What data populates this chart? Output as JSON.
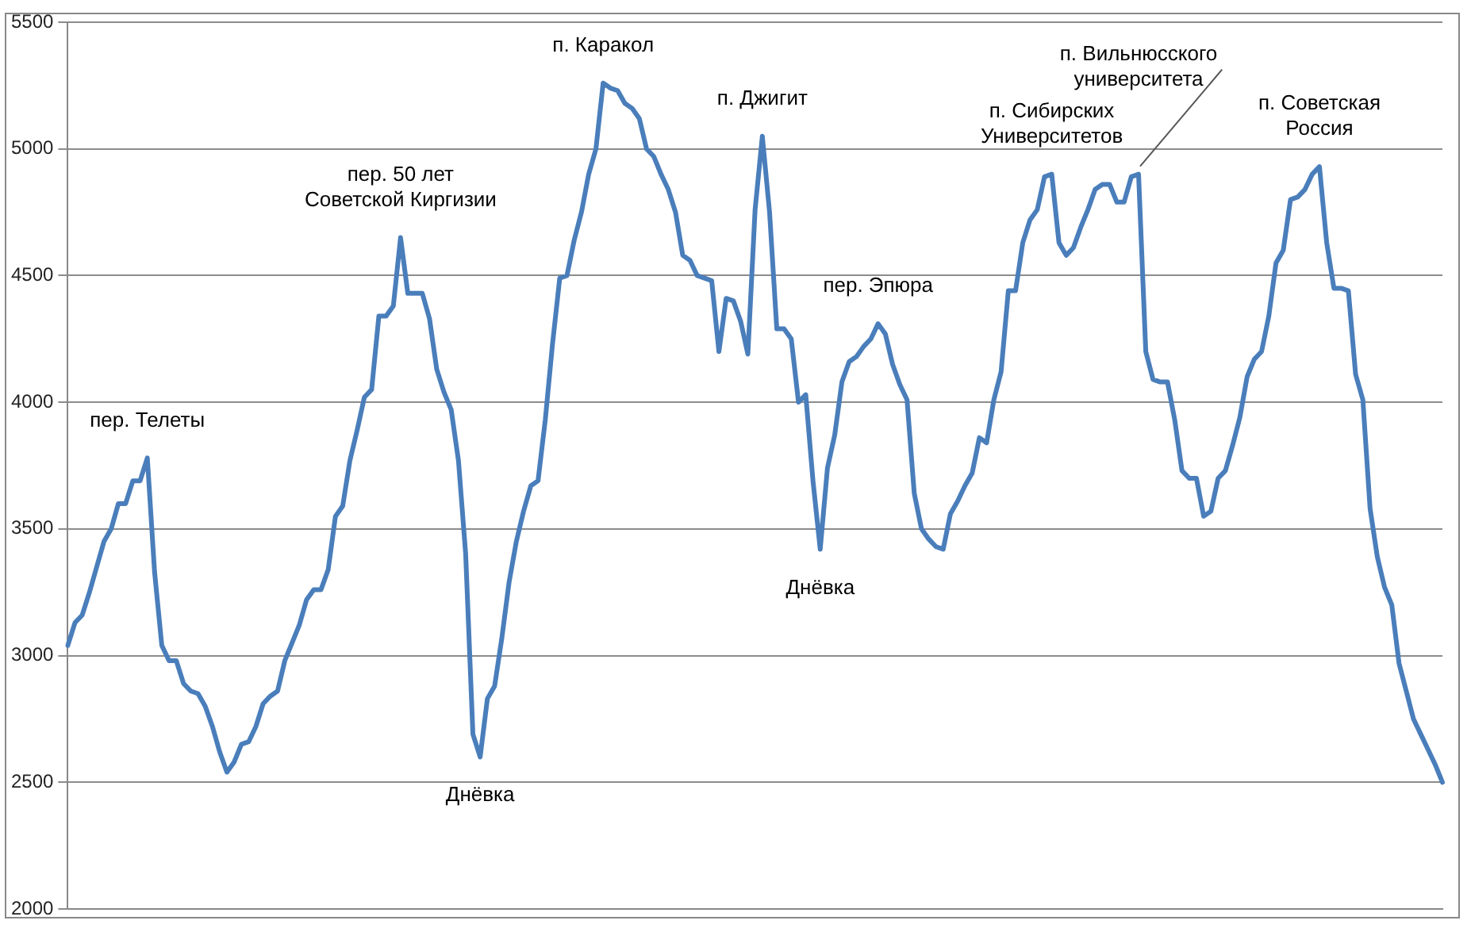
{
  "chart_data": {
    "type": "line",
    "categories": [
      null,
      null,
      null,
      null,
      null,
      null,
      null,
      null,
      null,
      null,
      null,
      null,
      null,
      null,
      null,
      null,
      null,
      null,
      null,
      null,
      null,
      null,
      null,
      null,
      null,
      null,
      null,
      null,
      null,
      null,
      null,
      null,
      null,
      null,
      null,
      null,
      null,
      null,
      null,
      null,
      null,
      null,
      null,
      null,
      null,
      null,
      null,
      null,
      null,
      null,
      null,
      null,
      null,
      null,
      null,
      null,
      null,
      null,
      null,
      null,
      null,
      null,
      null,
      null,
      null,
      null,
      null,
      null,
      null,
      null,
      null,
      null,
      null,
      null,
      null,
      null,
      null,
      null,
      null,
      null,
      null,
      null,
      null,
      null,
      null,
      null,
      null,
      null,
      null,
      null,
      null,
      null,
      null,
      null,
      null,
      null,
      null,
      null,
      null,
      null,
      null,
      null,
      null,
      null,
      null,
      null,
      null,
      null,
      null,
      null,
      null,
      null,
      null,
      null,
      null,
      null,
      null,
      null,
      null,
      null,
      null,
      null,
      null,
      null,
      null,
      null,
      null,
      null,
      null,
      null,
      null,
      null,
      null,
      null,
      null,
      null,
      null,
      null,
      null,
      null,
      null,
      null,
      null,
      null,
      null,
      null,
      null,
      null,
      null,
      null,
      null,
      null,
      null,
      null,
      null,
      null,
      null,
      null,
      null,
      null,
      null,
      null,
      null,
      null,
      null,
      null,
      null,
      null,
      null,
      null,
      null,
      null,
      null,
      null,
      null,
      null,
      null,
      null,
      null,
      null,
      null,
      null,
      null,
      null,
      null,
      null,
      null,
      null,
      null,
      null,
      null
    ],
    "series": [
      {
        "color": "#4a7ebb",
        "values": [
          3040,
          3130,
          3160,
          3250,
          3350,
          3450,
          3500,
          3600,
          3600,
          3690,
          3690,
          3780,
          3330,
          3040,
          2980,
          2980,
          2890,
          2860,
          2850,
          2800,
          2720,
          2620,
          2540,
          2580,
          2650,
          2660,
          2720,
          2810,
          2840,
          2860,
          2980,
          3050,
          3120,
          3220,
          3260,
          3260,
          3340,
          3550,
          3590,
          3770,
          3890,
          4020,
          4050,
          4340,
          4340,
          4380,
          4650,
          4430,
          4430,
          4430,
          4330,
          4130,
          4040,
          3970,
          3770,
          3400,
          2690,
          2600,
          2830,
          2880,
          3070,
          3290,
          3450,
          3570,
          3670,
          3690,
          3930,
          4230,
          4490,
          4500,
          4640,
          4750,
          4900,
          5000,
          5260,
          5240,
          5230,
          5180,
          5160,
          5120,
          5000,
          4970,
          4900,
          4840,
          4750,
          4580,
          4560,
          4500,
          4490,
          4480,
          4200,
          4410,
          4400,
          4320,
          4190,
          4760,
          5050,
          4750,
          4290,
          4290,
          4250,
          4000,
          4030,
          3690,
          3420,
          3740,
          3870,
          4080,
          4160,
          4180,
          4220,
          4250,
          4310,
          4270,
          4150,
          4070,
          4010,
          3640,
          3500,
          3460,
          3430,
          3420,
          3560,
          3610,
          3670,
          3720,
          3860,
          3840,
          4010,
          4120,
          4440,
          4440,
          4630,
          4720,
          4760,
          4890,
          4900,
          4630,
          4580,
          4610,
          4690,
          4760,
          4840,
          4860,
          4860,
          4790,
          4790,
          4890,
          4900,
          4200,
          4090,
          4080,
          4080,
          3930,
          3730,
          3700,
          3700,
          3550,
          3570,
          3700,
          3730,
          3830,
          3940,
          4100,
          4170,
          4200,
          4340,
          4550,
          4600,
          4800,
          4810,
          4840,
          4900,
          4930,
          4630,
          4450,
          4450,
          4440,
          4110,
          4010,
          3580,
          3390,
          3270,
          3200,
          2970,
          2860,
          2750,
          2690,
          2630,
          2570,
          2500
        ]
      }
    ],
    "ylim": [
      2000,
      5500
    ],
    "yticks": [
      2000,
      2500,
      3000,
      3500,
      4000,
      4500,
      5000,
      5500
    ],
    "grid": "y",
    "legend": false,
    "marker": "none",
    "line_style": "solid",
    "tick_labels": "y",
    "annotations": [
      {
        "text": "пер. Телеты",
        "y": 3780
      },
      {
        "text": "пер. 50 лет\nСоветской Киргизии",
        "y": 4650
      },
      {
        "text": "Днёвка",
        "y": 2600
      },
      {
        "text": "п. Каракол",
        "y": 5260
      },
      {
        "text": "п. Джигит",
        "y": 5050
      },
      {
        "text": "Днёвка",
        "y": 3420
      },
      {
        "text": "пер. Эпюра",
        "y": 4310
      },
      {
        "text": "п. Сибирских\nУниверситетов",
        "y": 4900
      },
      {
        "text": "п. Вильнюсского\nуниверситета",
        "y": 4900
      },
      {
        "text": "п. Советская\nРоссия",
        "y": 4930
      }
    ]
  }
}
